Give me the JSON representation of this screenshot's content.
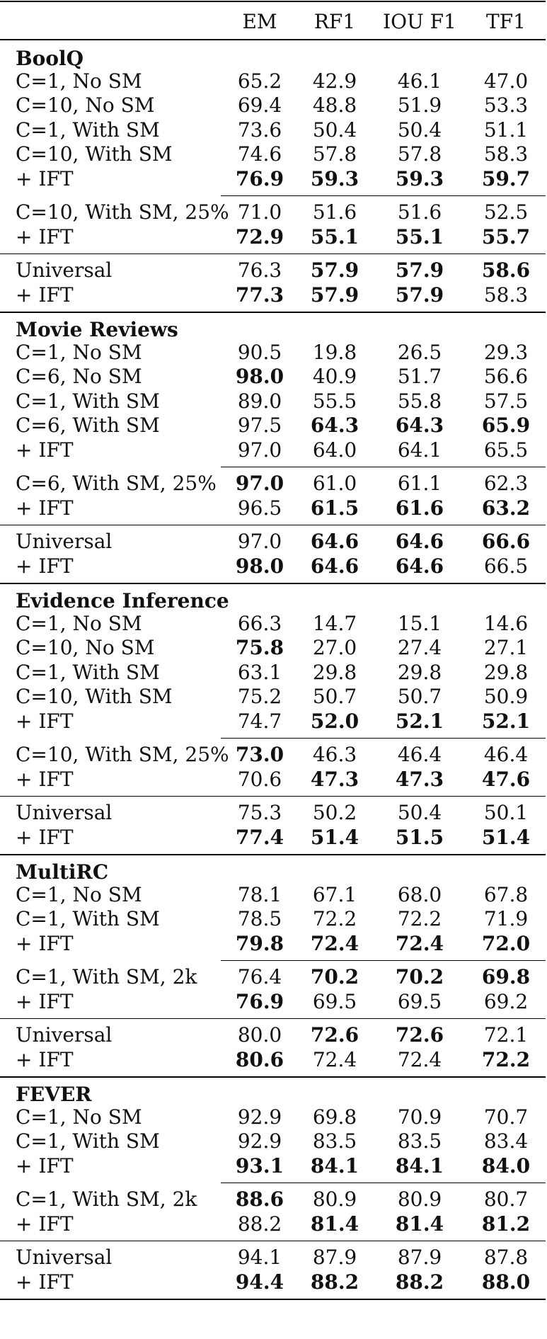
{
  "chart_data": {
    "type": "table",
    "columns": [
      "EM",
      "RF1",
      "IOU F1",
      "TF1"
    ],
    "sections": [
      {
        "title": "BoolQ",
        "groups": [
          [
            {
              "label": "C=1, No SM",
              "values": [
                "65.2",
                "42.9",
                "46.1",
                "47.0"
              ],
              "bold": [
                false,
                false,
                false,
                false
              ]
            },
            {
              "label": "C=10, No SM",
              "values": [
                "69.4",
                "48.8",
                "51.9",
                "53.3"
              ],
              "bold": [
                false,
                false,
                false,
                false
              ]
            },
            {
              "label": "C=1, With SM",
              "values": [
                "73.6",
                "50.4",
                "50.4",
                "51.1"
              ],
              "bold": [
                false,
                false,
                false,
                false
              ]
            },
            {
              "label": "C=10, With SM",
              "values": [
                "74.6",
                "57.8",
                "57.8",
                "58.3"
              ],
              "bold": [
                false,
                false,
                false,
                false
              ]
            },
            {
              "label": "+ IFT",
              "values": [
                "76.9",
                "59.3",
                "59.3",
                "59.7"
              ],
              "bold": [
                true,
                true,
                true,
                true
              ]
            }
          ],
          [
            {
              "label": "C=10, With SM, 25%",
              "values": [
                "71.0",
                "51.6",
                "51.6",
                "52.5"
              ],
              "bold": [
                false,
                false,
                false,
                false
              ]
            },
            {
              "label": "+ IFT",
              "values": [
                "72.9",
                "55.1",
                "55.1",
                "55.7"
              ],
              "bold": [
                true,
                true,
                true,
                true
              ]
            }
          ],
          [
            {
              "label": "Universal",
              "values": [
                "76.3",
                "57.9",
                "57.9",
                "58.6"
              ],
              "bold": [
                false,
                true,
                true,
                true
              ]
            },
            {
              "label": "+ IFT",
              "values": [
                "77.3",
                "57.9",
                "57.9",
                "58.3"
              ],
              "bold": [
                true,
                true,
                true,
                false
              ]
            }
          ]
        ]
      },
      {
        "title": "Movie Reviews",
        "groups": [
          [
            {
              "label": "C=1, No SM",
              "values": [
                "90.5",
                "19.8",
                "26.5",
                "29.3"
              ],
              "bold": [
                false,
                false,
                false,
                false
              ]
            },
            {
              "label": "C=6, No SM",
              "values": [
                "98.0",
                "40.9",
                "51.7",
                "56.6"
              ],
              "bold": [
                true,
                false,
                false,
                false
              ]
            },
            {
              "label": "C=1, With SM",
              "values": [
                "89.0",
                "55.5",
                "55.8",
                "57.5"
              ],
              "bold": [
                false,
                false,
                false,
                false
              ]
            },
            {
              "label": "C=6, With SM",
              "values": [
                "97.5",
                "64.3",
                "64.3",
                "65.9"
              ],
              "bold": [
                false,
                true,
                true,
                true
              ]
            },
            {
              "label": "+ IFT",
              "values": [
                "97.0",
                "64.0",
                "64.1",
                "65.5"
              ],
              "bold": [
                false,
                false,
                false,
                false
              ]
            }
          ],
          [
            {
              "label": "C=6, With SM, 25%",
              "values": [
                "97.0",
                "61.0",
                "61.1",
                "62.3"
              ],
              "bold": [
                true,
                false,
                false,
                false
              ]
            },
            {
              "label": "+ IFT",
              "values": [
                "96.5",
                "61.5",
                "61.6",
                "63.2"
              ],
              "bold": [
                false,
                true,
                true,
                true
              ]
            }
          ],
          [
            {
              "label": "Universal",
              "values": [
                "97.0",
                "64.6",
                "64.6",
                "66.6"
              ],
              "bold": [
                false,
                true,
                true,
                true
              ]
            },
            {
              "label": "+ IFT",
              "values": [
                "98.0",
                "64.6",
                "64.6",
                "66.5"
              ],
              "bold": [
                true,
                true,
                true,
                false
              ]
            }
          ]
        ]
      },
      {
        "title": "Evidence Inference",
        "groups": [
          [
            {
              "label": "C=1, No SM",
              "values": [
                "66.3",
                "14.7",
                "15.1",
                "14.6"
              ],
              "bold": [
                false,
                false,
                false,
                false
              ]
            },
            {
              "label": "C=10, No SM",
              "values": [
                "75.8",
                "27.0",
                "27.4",
                "27.1"
              ],
              "bold": [
                true,
                false,
                false,
                false
              ]
            },
            {
              "label": "C=1, With SM",
              "values": [
                "63.1",
                "29.8",
                "29.8",
                "29.8"
              ],
              "bold": [
                false,
                false,
                false,
                false
              ]
            },
            {
              "label": "C=10, With SM",
              "values": [
                "75.2",
                "50.7",
                "50.7",
                "50.9"
              ],
              "bold": [
                false,
                false,
                false,
                false
              ]
            },
            {
              "label": "+ IFT",
              "values": [
                "74.7",
                "52.0",
                "52.1",
                "52.1"
              ],
              "bold": [
                false,
                true,
                true,
                true
              ]
            }
          ],
          [
            {
              "label": "C=10, With SM, 25%",
              "values": [
                "73.0",
                "46.3",
                "46.4",
                "46.4"
              ],
              "bold": [
                true,
                false,
                false,
                false
              ]
            },
            {
              "label": "+ IFT",
              "values": [
                "70.6",
                "47.3",
                "47.3",
                "47.6"
              ],
              "bold": [
                false,
                true,
                true,
                true
              ]
            }
          ],
          [
            {
              "label": "Universal",
              "values": [
                "75.3",
                "50.2",
                "50.4",
                "50.1"
              ],
              "bold": [
                false,
                false,
                false,
                false
              ]
            },
            {
              "label": "+ IFT",
              "values": [
                "77.4",
                "51.4",
                "51.5",
                "51.4"
              ],
              "bold": [
                true,
                true,
                true,
                true
              ]
            }
          ]
        ]
      },
      {
        "title": "MultiRC",
        "groups": [
          [
            {
              "label": "C=1, No SM",
              "values": [
                "78.1",
                "67.1",
                "68.0",
                "67.8"
              ],
              "bold": [
                false,
                false,
                false,
                false
              ]
            },
            {
              "label": "C=1, With SM",
              "values": [
                "78.5",
                "72.2",
                "72.2",
                "71.9"
              ],
              "bold": [
                false,
                false,
                false,
                false
              ]
            },
            {
              "label": "+ IFT",
              "values": [
                "79.8",
                "72.4",
                "72.4",
                "72.0"
              ],
              "bold": [
                true,
                true,
                true,
                true
              ]
            }
          ],
          [
            {
              "label": "C=1, With SM, 2k",
              "values": [
                "76.4",
                "70.2",
                "70.2",
                "69.8"
              ],
              "bold": [
                false,
                true,
                true,
                true
              ]
            },
            {
              "label": "+ IFT",
              "values": [
                "76.9",
                "69.5",
                "69.5",
                "69.2"
              ],
              "bold": [
                true,
                false,
                false,
                false
              ]
            }
          ],
          [
            {
              "label": "Universal",
              "values": [
                "80.0",
                "72.6",
                "72.6",
                "72.1"
              ],
              "bold": [
                false,
                true,
                true,
                false
              ]
            },
            {
              "label": "+ IFT",
              "values": [
                "80.6",
                "72.4",
                "72.4",
                "72.2"
              ],
              "bold": [
                true,
                false,
                false,
                true
              ]
            }
          ]
        ]
      },
      {
        "title": "FEVER",
        "groups": [
          [
            {
              "label": "C=1, No SM",
              "values": [
                "92.9",
                "69.8",
                "70.9",
                "70.7"
              ],
              "bold": [
                false,
                false,
                false,
                false
              ]
            },
            {
              "label": "C=1, With SM",
              "values": [
                "92.9",
                "83.5",
                "83.5",
                "83.4"
              ],
              "bold": [
                false,
                false,
                false,
                false
              ]
            },
            {
              "label": "+ IFT",
              "values": [
                "93.1",
                "84.1",
                "84.1",
                "84.0"
              ],
              "bold": [
                true,
                true,
                true,
                true
              ]
            }
          ],
          [
            {
              "label": "C=1, With SM, 2k",
              "values": [
                "88.6",
                "80.9",
                "80.9",
                "80.7"
              ],
              "bold": [
                true,
                false,
                false,
                false
              ]
            },
            {
              "label": "+ IFT",
              "values": [
                "88.2",
                "81.4",
                "81.4",
                "81.2"
              ],
              "bold": [
                false,
                true,
                true,
                true
              ]
            }
          ],
          [
            {
              "label": "Universal",
              "values": [
                "94.1",
                "87.9",
                "87.9",
                "87.8"
              ],
              "bold": [
                false,
                false,
                false,
                false
              ]
            },
            {
              "label": "+ IFT",
              "values": [
                "94.4",
                "88.2",
                "88.2",
                "88.0"
              ],
              "bold": [
                true,
                true,
                true,
                true
              ]
            }
          ]
        ]
      }
    ]
  }
}
